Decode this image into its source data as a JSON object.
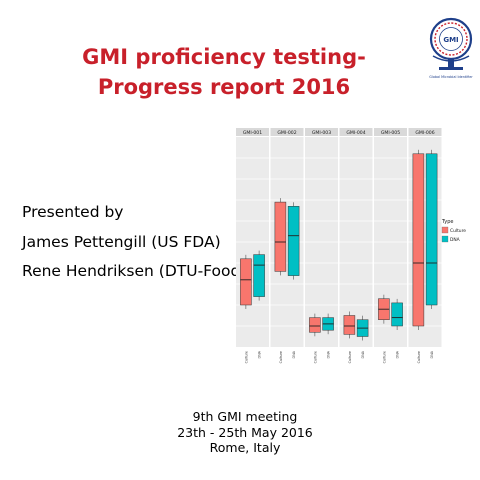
{
  "title_lines": [
    "GMI proficiency testing-",
    "Progress report 2016"
  ],
  "logo": {
    "center_text": "GMI",
    "caption": "Global Microbial Identifier"
  },
  "presenters": [
    "Presented by",
    "James Pettengill (US FDA)",
    "Rene Hendriksen (DTU-Food)"
  ],
  "footer": [
    "9th GMI meeting",
    "23th - 25th May 2016",
    "Rome, Italy"
  ],
  "colors": {
    "title": "#c8202a",
    "culture": "#f8766d",
    "dna": "#00bfc4"
  },
  "chart_data": {
    "type": "box",
    "facets": [
      "GMI-001",
      "GMI-002",
      "GMI-003",
      "GMI-004",
      "GMI-005",
      "GMI-006"
    ],
    "categories": [
      "Culture",
      "DNA"
    ],
    "legend": {
      "title": "Type",
      "entries": [
        "Culture",
        "DNA"
      ],
      "position": "right"
    },
    "y_scale": "log",
    "ylim": [
      0,
      10
    ],
    "grid": true,
    "series": [
      {
        "name": "Culture",
        "boxes": [
          {
            "facet": "GMI-001",
            "q1": 2.0,
            "median": 3.2,
            "q3": 4.2
          },
          {
            "facet": "GMI-002",
            "q1": 3.6,
            "median": 5.0,
            "q3": 6.9
          },
          {
            "facet": "GMI-003",
            "q1": 0.7,
            "median": 1.0,
            "q3": 1.4
          },
          {
            "facet": "GMI-004",
            "q1": 0.6,
            "median": 1.0,
            "q3": 1.5
          },
          {
            "facet": "GMI-005",
            "q1": 1.3,
            "median": 1.8,
            "q3": 2.3
          },
          {
            "facet": "GMI-006",
            "q1": 1.0,
            "median": 4.0,
            "q3": 9.2
          }
        ]
      },
      {
        "name": "DNA",
        "boxes": [
          {
            "facet": "GMI-001",
            "q1": 2.4,
            "median": 3.9,
            "q3": 4.4
          },
          {
            "facet": "GMI-002",
            "q1": 3.4,
            "median": 5.3,
            "q3": 6.7
          },
          {
            "facet": "GMI-003",
            "q1": 0.8,
            "median": 1.1,
            "q3": 1.4
          },
          {
            "facet": "GMI-004",
            "q1": 0.5,
            "median": 0.9,
            "q3": 1.3
          },
          {
            "facet": "GMI-005",
            "q1": 1.0,
            "median": 1.4,
            "q3": 2.1
          },
          {
            "facet": "GMI-006",
            "q1": 2.0,
            "median": 4.0,
            "q3": 9.2
          }
        ]
      }
    ]
  }
}
